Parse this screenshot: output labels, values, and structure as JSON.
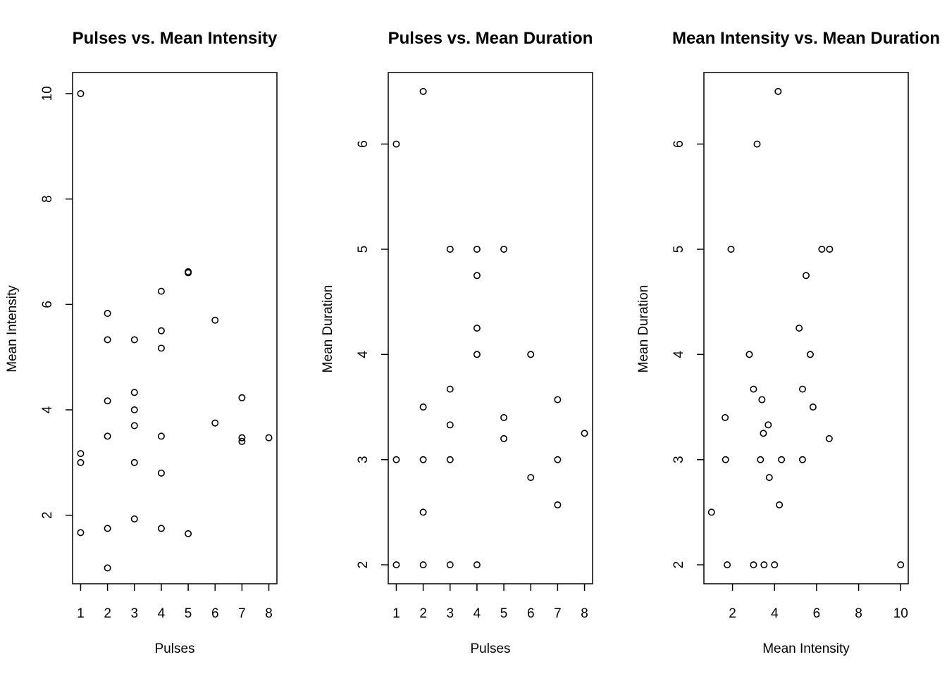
{
  "chart_data": [
    {
      "type": "scatter",
      "title": "Pulses vs. Mean Intensity",
      "xlabel": "Pulses",
      "ylabel": "Mean Intensity",
      "xlim": [
        0.7,
        8.3
      ],
      "ylim": [
        0.7,
        10.4
      ],
      "xticks": [
        1,
        2,
        3,
        4,
        5,
        6,
        7,
        8
      ],
      "yticks": [
        2,
        4,
        6,
        8,
        10
      ],
      "grid": false,
      "points": [
        {
          "x": 1,
          "y": 10
        },
        {
          "x": 1,
          "y": 3.17
        },
        {
          "x": 1,
          "y": 3
        },
        {
          "x": 1,
          "y": 1.67
        },
        {
          "x": 2,
          "y": 5.83
        },
        {
          "x": 2,
          "y": 5.33
        },
        {
          "x": 2,
          "y": 4.17
        },
        {
          "x": 2,
          "y": 3.5
        },
        {
          "x": 2,
          "y": 1.75
        },
        {
          "x": 2,
          "y": 1
        },
        {
          "x": 3,
          "y": 5.33
        },
        {
          "x": 3,
          "y": 4.33
        },
        {
          "x": 3,
          "y": 4
        },
        {
          "x": 3,
          "y": 3.7
        },
        {
          "x": 3,
          "y": 3
        },
        {
          "x": 3,
          "y": 1.93
        },
        {
          "x": 4,
          "y": 6.25
        },
        {
          "x": 4,
          "y": 5.5
        },
        {
          "x": 4,
          "y": 5.17
        },
        {
          "x": 4,
          "y": 3.5
        },
        {
          "x": 4,
          "y": 2.8
        },
        {
          "x": 4,
          "y": 1.75
        },
        {
          "x": 5,
          "y": 6.6
        },
        {
          "x": 5,
          "y": 6.62
        },
        {
          "x": 5,
          "y": 1.65
        },
        {
          "x": 6,
          "y": 5.7
        },
        {
          "x": 6,
          "y": 3.75
        },
        {
          "x": 7,
          "y": 4.23
        },
        {
          "x": 7,
          "y": 3.47
        },
        {
          "x": 7,
          "y": 3.4
        },
        {
          "x": 8,
          "y": 3.47
        }
      ]
    },
    {
      "type": "scatter",
      "title": "Pulses vs. Mean Duration",
      "xlabel": "Pulses",
      "ylabel": "Mean Duration",
      "xlim": [
        0.7,
        8.3
      ],
      "ylim": [
        1.82,
        6.68
      ],
      "xticks": [
        1,
        2,
        3,
        4,
        5,
        6,
        7,
        8
      ],
      "yticks": [
        2,
        3,
        4,
        5,
        6
      ],
      "grid": false,
      "points": [
        {
          "x": 1,
          "y": 6
        },
        {
          "x": 1,
          "y": 3
        },
        {
          "x": 1,
          "y": 2
        },
        {
          "x": 2,
          "y": 6.5
        },
        {
          "x": 2,
          "y": 3.5
        },
        {
          "x": 2,
          "y": 3
        },
        {
          "x": 2,
          "y": 2.5
        },
        {
          "x": 2,
          "y": 2
        },
        {
          "x": 3,
          "y": 5
        },
        {
          "x": 3,
          "y": 3.67
        },
        {
          "x": 3,
          "y": 3.33
        },
        {
          "x": 3,
          "y": 3
        },
        {
          "x": 3,
          "y": 2
        },
        {
          "x": 4,
          "y": 5
        },
        {
          "x": 4,
          "y": 4.75
        },
        {
          "x": 4,
          "y": 4.25
        },
        {
          "x": 4,
          "y": 4
        },
        {
          "x": 4,
          "y": 2
        },
        {
          "x": 5,
          "y": 5
        },
        {
          "x": 5,
          "y": 3.4
        },
        {
          "x": 5,
          "y": 3.2
        },
        {
          "x": 6,
          "y": 4
        },
        {
          "x": 6,
          "y": 2.83
        },
        {
          "x": 7,
          "y": 3.57
        },
        {
          "x": 7,
          "y": 3
        },
        {
          "x": 7,
          "y": 2.57
        },
        {
          "x": 8,
          "y": 3.25
        }
      ]
    },
    {
      "type": "scatter",
      "title": "Mean Intensity vs. Mean Duration",
      "xlabel": "Mean Intensity",
      "ylabel": "Mean Duration",
      "xlim": [
        0.64,
        10.36
      ],
      "ylim": [
        1.82,
        6.68
      ],
      "xticks": [
        2,
        4,
        6,
        8,
        10
      ],
      "yticks": [
        2,
        3,
        4,
        5,
        6
      ],
      "grid": false,
      "points": [
        {
          "x": 1,
          "y": 2.5
        },
        {
          "x": 1.65,
          "y": 3.4
        },
        {
          "x": 1.67,
          "y": 3
        },
        {
          "x": 1.75,
          "y": 2
        },
        {
          "x": 1.93,
          "y": 5
        },
        {
          "x": 2.8,
          "y": 4
        },
        {
          "x": 3,
          "y": 3.67
        },
        {
          "x": 3,
          "y": 2
        },
        {
          "x": 3.17,
          "y": 6
        },
        {
          "x": 3.33,
          "y": 3
        },
        {
          "x": 3.4,
          "y": 3.57
        },
        {
          "x": 3.47,
          "y": 3.25
        },
        {
          "x": 3.5,
          "y": 2
        },
        {
          "x": 3.7,
          "y": 3.33
        },
        {
          "x": 3.75,
          "y": 2.83
        },
        {
          "x": 4,
          "y": 2
        },
        {
          "x": 4.17,
          "y": 6.5
        },
        {
          "x": 4.23,
          "y": 2.57
        },
        {
          "x": 4.33,
          "y": 3
        },
        {
          "x": 5.17,
          "y": 4.25
        },
        {
          "x": 5.33,
          "y": 3.67
        },
        {
          "x": 5.33,
          "y": 3
        },
        {
          "x": 5.5,
          "y": 4.75
        },
        {
          "x": 5.7,
          "y": 4
        },
        {
          "x": 5.83,
          "y": 3.5
        },
        {
          "x": 6.25,
          "y": 5
        },
        {
          "x": 6.62,
          "y": 5
        },
        {
          "x": 6.6,
          "y": 3.2
        },
        {
          "x": 10,
          "y": 2
        }
      ]
    }
  ]
}
